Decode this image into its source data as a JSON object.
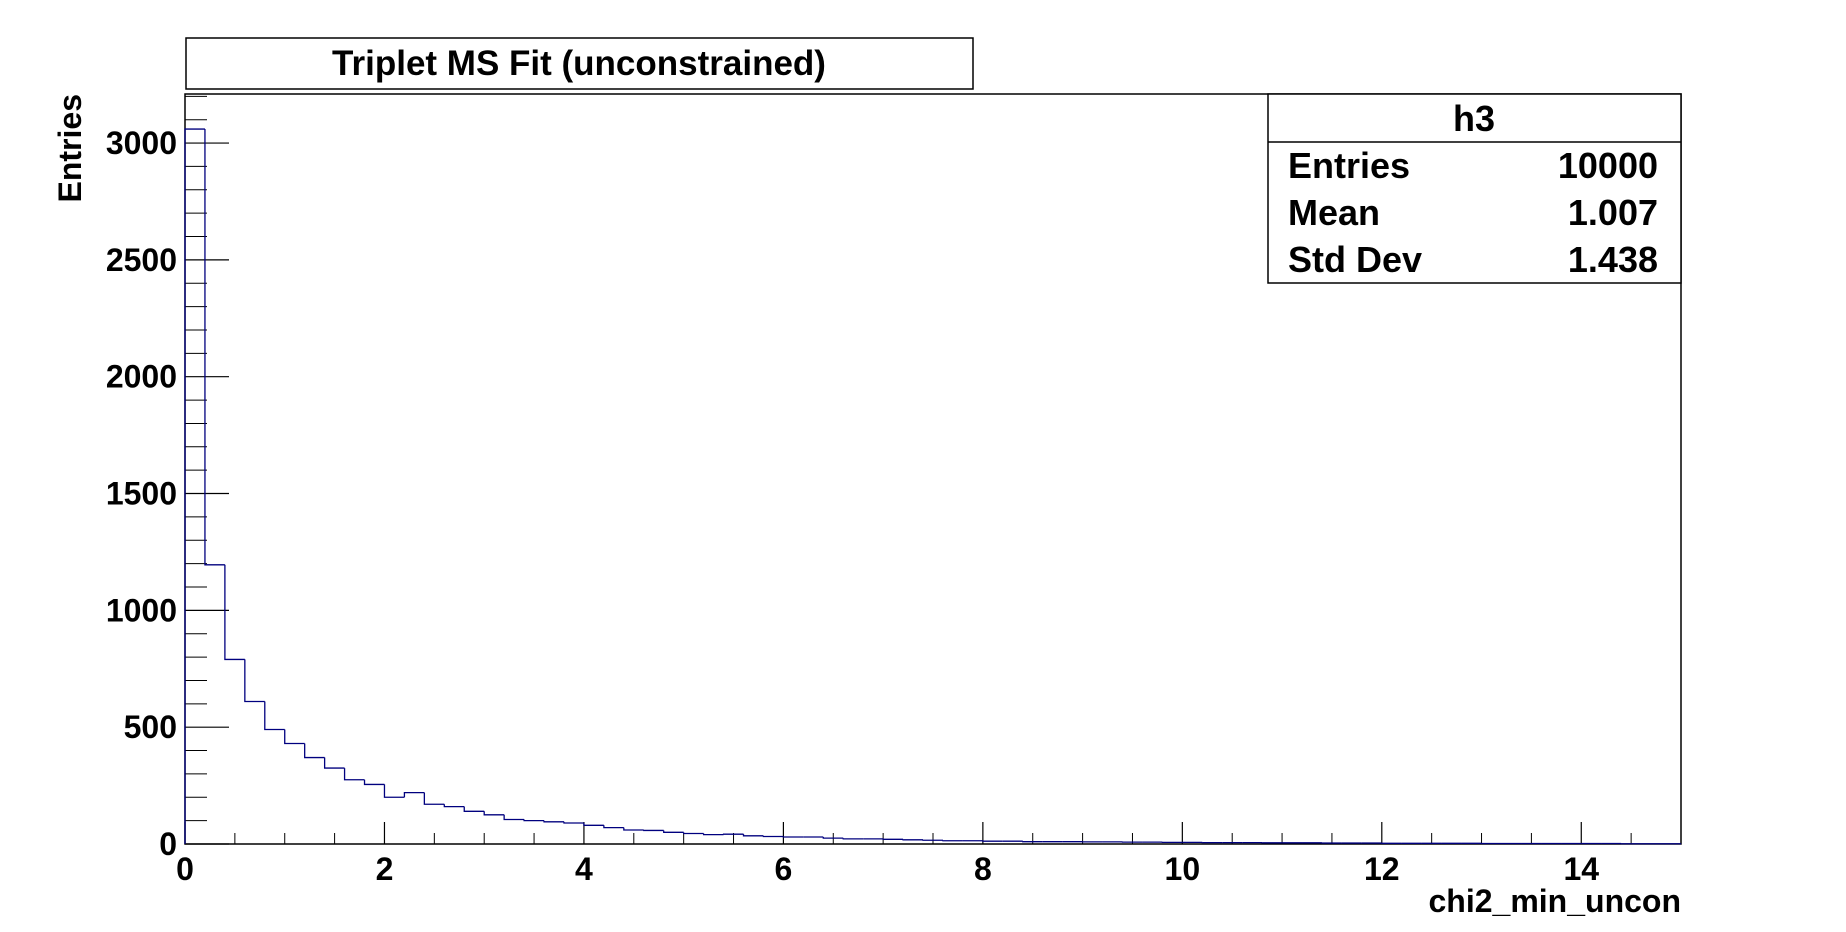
{
  "chart_data": {
    "type": "histogram",
    "title": "Triplet MS Fit (unconstrained)",
    "xlabel": "chi2_min_uncon",
    "ylabel": "Entries",
    "xlim": [
      0,
      15
    ],
    "ylim": [
      0,
      3210
    ],
    "grid": false,
    "line_color": "#00007f",
    "bin_width": 0.2,
    "x_ticks": [
      0,
      2,
      4,
      6,
      8,
      10,
      12,
      14
    ],
    "x_tick_labels": [
      "0",
      "2",
      "4",
      "6",
      "8",
      "10",
      "12",
      "14"
    ],
    "y_ticks": [
      0,
      500,
      1000,
      1500,
      2000,
      2500,
      3000
    ],
    "y_tick_labels": [
      "0",
      "500",
      "1000",
      "1500",
      "2000",
      "2500",
      "3000"
    ],
    "bin_values": [
      3060,
      1195,
      790,
      610,
      490,
      430,
      370,
      325,
      275,
      255,
      200,
      220,
      170,
      160,
      140,
      125,
      105,
      100,
      95,
      90,
      80,
      70,
      60,
      58,
      50,
      45,
      40,
      42,
      35,
      32,
      30,
      30,
      25,
      22,
      22,
      20,
      18,
      16,
      14,
      14,
      12,
      12,
      10,
      10,
      10,
      9,
      9,
      8,
      8,
      7,
      7,
      6,
      6,
      6,
      5,
      5,
      5,
      4,
      4,
      4,
      3,
      3,
      3,
      3,
      3,
      2,
      2,
      2,
      2,
      2,
      2,
      2,
      1,
      1,
      1
    ],
    "stats_box": {
      "name": "h3",
      "rows": [
        {
          "label": "Entries",
          "value": "10000"
        },
        {
          "label": "Mean",
          "value": "1.007"
        },
        {
          "label": "Std Dev",
          "value": "1.438"
        }
      ]
    }
  }
}
